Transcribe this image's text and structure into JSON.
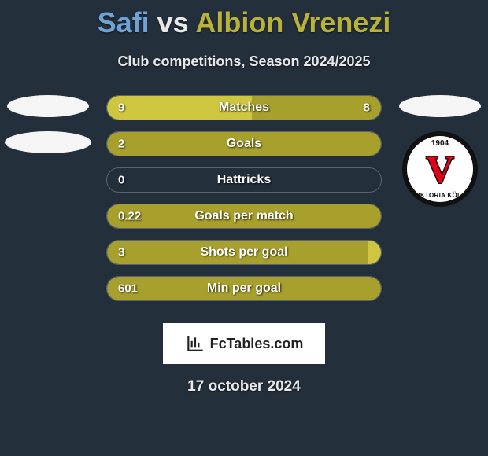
{
  "title": {
    "player1": "Safi",
    "vs": "vs",
    "player2": "Albion Vrenezi"
  },
  "subtitle": "Club competitions, Season 2024/2025",
  "colors": {
    "bg": "#242f3c",
    "p1_accent": "#6fa3d6",
    "p2_accent": "#b9b23a",
    "bar_full": "#a8a02c",
    "bar_highlight": "#cfc640",
    "text": "#ffffff"
  },
  "right_club": {
    "year": "1904",
    "initial": "V",
    "name": "VIKTORIA KÖLN"
  },
  "bars": [
    {
      "label": "Matches",
      "left_val": "9",
      "right_val": "8",
      "left_pct": 53,
      "right_pct": 47,
      "style": "split"
    },
    {
      "label": "Goals",
      "left_val": "2",
      "right_val": "",
      "left_pct": 100,
      "right_pct": 0,
      "style": "full"
    },
    {
      "label": "Hattricks",
      "left_val": "0",
      "right_val": "",
      "left_pct": 0,
      "right_pct": 0,
      "style": "empty"
    },
    {
      "label": "Goals per match",
      "left_val": "0.22",
      "right_val": "",
      "left_pct": 100,
      "right_pct": 0,
      "style": "full"
    },
    {
      "label": "Shots per goal",
      "left_val": "3",
      "right_val": "",
      "left_pct": 95,
      "right_pct": 0,
      "style": "highlight-cap"
    },
    {
      "label": "Min per goal",
      "left_val": "601",
      "right_val": "",
      "left_pct": 100,
      "right_pct": 0,
      "style": "full"
    }
  ],
  "branding": "FcTables.com",
  "date": "17 october 2024"
}
